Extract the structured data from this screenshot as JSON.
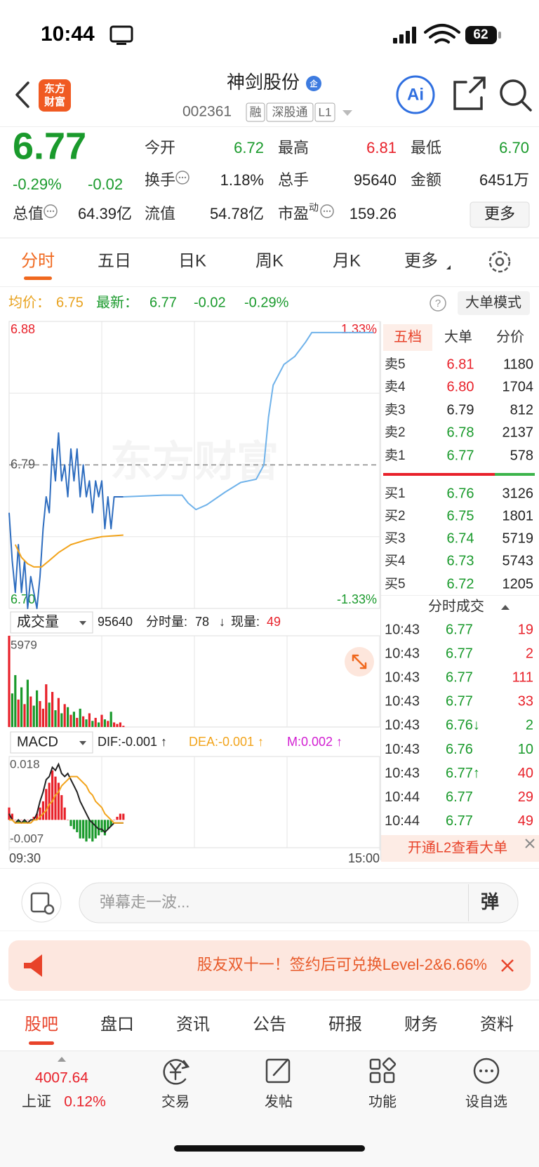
{
  "status": {
    "time": "10:44",
    "battery": "62"
  },
  "header": {
    "logo": [
      "东方",
      "财富"
    ],
    "title": "神剑股份",
    "badge": "企",
    "code": "002361",
    "tags": [
      "融",
      "深股通",
      "L1"
    ],
    "ai": "Ai"
  },
  "quote": {
    "price": "6.77",
    "change_pct": "-0.29%",
    "change": "-0.02",
    "color": "green",
    "stats": [
      {
        "label": "今开",
        "value": "6.72",
        "color": "green"
      },
      {
        "label": "最高",
        "value": "6.81",
        "color": "red"
      },
      {
        "label": "最低",
        "value": "6.70",
        "color": "green"
      },
      {
        "label": "换手",
        "value": "1.18%",
        "info": true
      },
      {
        "label": "总手",
        "value": "95640"
      },
      {
        "label": "金额",
        "value": "6451万"
      },
      {
        "label": "总值",
        "value": "64.39亿",
        "info": true
      },
      {
        "label": "流值",
        "value": "54.78亿"
      },
      {
        "label": "市盈",
        "sup": "动",
        "value": "159.26",
        "info": true
      }
    ],
    "more": "更多"
  },
  "tabs": {
    "items": [
      "分时",
      "五日",
      "日K",
      "周K",
      "月K",
      "更多"
    ],
    "active": 0
  },
  "info": {
    "avg_label": "均价：",
    "avg": "6.75",
    "latest_label": "最新：",
    "latest": "6.77",
    "change": "-0.02",
    "change_pct": "-0.29%",
    "help": "?",
    "mode": "大单模式"
  },
  "intraday": {
    "watermark": "东方财富",
    "xlim": [
      0,
      240
    ],
    "xticks": [
      {
        "value": 0,
        "label": "09:30"
      },
      {
        "value": 240,
        "label": "15:00"
      }
    ],
    "ylim": [
      6.7,
      6.88
    ],
    "yticks": [
      {
        "value": 6.7,
        "label": "6.70"
      },
      6.79,
      6.88
    ],
    "y2lim": [
      -1.33,
      1.33
    ],
    "y2ticks": [
      {
        "value": 1.33,
        "label": "1.33%"
      },
      {
        "value": -1.33,
        "label": "-1.33%"
      }
    ],
    "series": [
      {
        "color": "#2e6dbf",
        "x": [
          0,
          2,
          4,
          6,
          8,
          10,
          12,
          14,
          16,
          18,
          20,
          22,
          24,
          26,
          28,
          30,
          32,
          34,
          36,
          38,
          40,
          42,
          44,
          46,
          48,
          50,
          52,
          54,
          56,
          58,
          60,
          62,
          64,
          66,
          68,
          70,
          72,
          74
        ],
        "values": [
          6.76,
          6.73,
          6.71,
          6.74,
          6.71,
          6.73,
          6.7,
          6.72,
          6.71,
          6.7,
          6.72,
          6.75,
          6.77,
          6.76,
          6.8,
          6.78,
          6.81,
          6.78,
          6.79,
          6.77,
          6.8,
          6.78,
          6.8,
          6.77,
          6.79,
          6.77,
          6.78,
          6.76,
          6.78,
          6.77,
          6.78,
          6.75,
          6.77,
          6.75,
          6.77,
          6.77,
          6.77,
          6.77
        ]
      },
      {
        "color": "#f2a41c",
        "x": [
          4,
          8,
          12,
          16,
          21,
          26,
          32,
          40,
          50,
          60,
          74
        ],
        "values": [
          6.74,
          6.732,
          6.728,
          6.726,
          6.726,
          6.73,
          6.735,
          6.74,
          6.743,
          6.745,
          6.746
        ]
      },
      {
        "color": "#6fb2ea",
        "x": [
          74,
          100,
          112,
          116,
          121,
          128,
          140,
          150,
          160,
          165,
          168,
          171,
          178,
          185,
          192,
          196,
          236
        ],
        "values": [
          6.77,
          6.771,
          6.771,
          6.766,
          6.762,
          6.765,
          6.773,
          6.779,
          6.781,
          6.79,
          6.82,
          6.84,
          6.853,
          6.858,
          6.867,
          6.873,
          6.873
        ]
      }
    ]
  },
  "volume": {
    "selector": "成交量",
    "total": "95640",
    "fs_label": "分时量:",
    "fs": "78",
    "fs_arrow": "↓",
    "now_label": "现量:",
    "now": "49",
    "ylim": [
      0,
      5979
    ],
    "yticks": [
      5979
    ],
    "x": [
      0,
      2,
      4,
      6,
      8,
      10,
      12,
      14,
      16,
      18,
      20,
      22,
      24,
      26,
      28,
      30,
      32,
      34,
      36,
      38,
      40,
      42,
      44,
      46,
      48,
      50,
      52,
      54,
      56,
      58,
      60,
      62,
      64,
      66,
      68,
      70,
      72,
      74
    ],
    "values": [
      5979,
      2200,
      3400,
      1800,
      2600,
      1500,
      3100,
      2000,
      1400,
      2400,
      1700,
      1200,
      2800,
      1600,
      2300,
      1100,
      1900,
      900,
      1500,
      1300,
      800,
      1000,
      600,
      1200,
      700,
      500,
      900,
      400,
      600,
      300,
      800,
      500,
      400,
      1000,
      300,
      200,
      300,
      78
    ]
  },
  "macd": {
    "selector": "MACD",
    "dif_text": "DIF:-0.001 ↑",
    "dea_text": "DEA:-0.001 ↑",
    "m_text": "M:0.002 ↑",
    "ylim": [
      -0.009,
      0.0205
    ],
    "yticks": [
      0.018,
      -0.007
    ],
    "x": [
      0,
      2,
      4,
      6,
      8,
      10,
      12,
      14,
      16,
      18,
      20,
      22,
      24,
      26,
      28,
      30,
      32,
      34,
      36,
      38,
      40,
      42,
      44,
      46,
      48,
      50,
      52,
      54,
      56,
      58,
      60,
      62,
      64,
      66,
      68,
      70,
      72,
      74
    ],
    "hist": [
      0.004,
      0.002,
      0,
      -0.001,
      0,
      -0.001,
      0,
      0,
      0.001,
      0.002,
      0.004,
      0.006,
      0.01,
      0.012,
      0.016,
      0.014,
      0.012,
      0.008,
      0.004,
      0,
      -0.002,
      -0.003,
      -0.004,
      -0.006,
      -0.006,
      -0.007,
      -0.006,
      -0.007,
      -0.006,
      -0.005,
      -0.004,
      -0.005,
      -0.003,
      -0.002,
      0,
      0.001,
      0.002,
      0.002
    ],
    "dif": [
      0.002,
      0,
      -0.001,
      0,
      -0.001,
      0,
      -0.001,
      0,
      0,
      0.002,
      0.006,
      0.009,
      0.013,
      0.014,
      0.017,
      0.016,
      0.018,
      0.015,
      0.014,
      0.015,
      0.013,
      0.011,
      0.009,
      0.006,
      0.004,
      0.002,
      0,
      -0.001,
      -0.002,
      -0.003,
      -0.003,
      -0.004,
      -0.003,
      -0.002,
      -0.001,
      -0.001,
      -0.001,
      -0.001
    ],
    "dea": [
      0,
      0,
      -0.001,
      -0.001,
      -0.001,
      -0.001,
      -0.001,
      -0.001,
      0,
      0,
      0.001,
      0.002,
      0.003,
      0.005,
      0.006,
      0.008,
      0.009,
      0.011,
      0.012,
      0.013,
      0.014,
      0.014,
      0.014,
      0.013,
      0.012,
      0.011,
      0.009,
      0.008,
      0.006,
      0.005,
      0.004,
      0.002,
      0.001,
      0,
      -0.001,
      -0.001,
      -0.001,
      -0.001
    ],
    "dif_color": "#222222",
    "dea_color": "#f2a41c"
  },
  "order_book": {
    "tabs": [
      "五档",
      "大单",
      "分价"
    ],
    "active": 0,
    "asks": [
      {
        "label": "卖5",
        "price": "6.81",
        "vol": "1180",
        "color": "red"
      },
      {
        "label": "卖4",
        "price": "6.80",
        "vol": "1704",
        "color": "red"
      },
      {
        "label": "卖3",
        "price": "6.79",
        "vol": "812",
        "color": "black"
      },
      {
        "label": "卖2",
        "price": "6.78",
        "vol": "2137",
        "color": "green"
      },
      {
        "label": "卖1",
        "price": "6.77",
        "vol": "578",
        "color": "green"
      }
    ],
    "bids": [
      {
        "label": "买1",
        "price": "6.76",
        "vol": "3126",
        "color": "green"
      },
      {
        "label": "买2",
        "price": "6.75",
        "vol": "1801",
        "color": "green"
      },
      {
        "label": "买3",
        "price": "6.74",
        "vol": "5719",
        "color": "green"
      },
      {
        "label": "买4",
        "price": "6.73",
        "vol": "5743",
        "color": "green"
      },
      {
        "label": "买5",
        "price": "6.72",
        "vol": "1205",
        "color": "green"
      }
    ]
  },
  "trades": {
    "title": "分时成交",
    "rows": [
      {
        "time": "10:43",
        "price": "6.77",
        "vol": "19",
        "price_color": "green",
        "vol_color": "red"
      },
      {
        "time": "10:43",
        "price": "6.77",
        "vol": "2",
        "price_color": "green",
        "vol_color": "red"
      },
      {
        "time": "10:43",
        "price": "6.77",
        "vol": "111",
        "price_color": "green",
        "vol_color": "red"
      },
      {
        "time": "10:43",
        "price": "6.77",
        "vol": "33",
        "price_color": "green",
        "vol_color": "red"
      },
      {
        "time": "10:43",
        "price": "6.76↓",
        "vol": "2",
        "price_color": "green",
        "vol_color": "green"
      },
      {
        "time": "10:43",
        "price": "6.76",
        "vol": "10",
        "price_color": "green",
        "vol_color": "green"
      },
      {
        "time": "10:43",
        "price": "6.77↑",
        "vol": "40",
        "price_color": "green",
        "vol_color": "red"
      },
      {
        "time": "10:44",
        "price": "6.77",
        "vol": "29",
        "price_color": "green",
        "vol_color": "red"
      },
      {
        "time": "10:44",
        "price": "6.77",
        "vol": "49",
        "price_color": "green",
        "vol_color": "red"
      }
    ],
    "l2": "开通L2查看大单"
  },
  "danmu": {
    "placeholder": "弹幕走一波...",
    "button": "弹"
  },
  "banner": {
    "text": "股友双十一！签约后可兑换Level-2&6.66%"
  },
  "bottom_tabs": {
    "items": [
      "股吧",
      "盘口",
      "资讯",
      "公告",
      "研报",
      "财务",
      "资料"
    ],
    "active": 0
  },
  "nav": {
    "index_value": "4007.64",
    "index_name": "上证",
    "index_pct": "0.12%",
    "items": [
      "交易",
      "发帖",
      "功能",
      "设自选"
    ]
  }
}
